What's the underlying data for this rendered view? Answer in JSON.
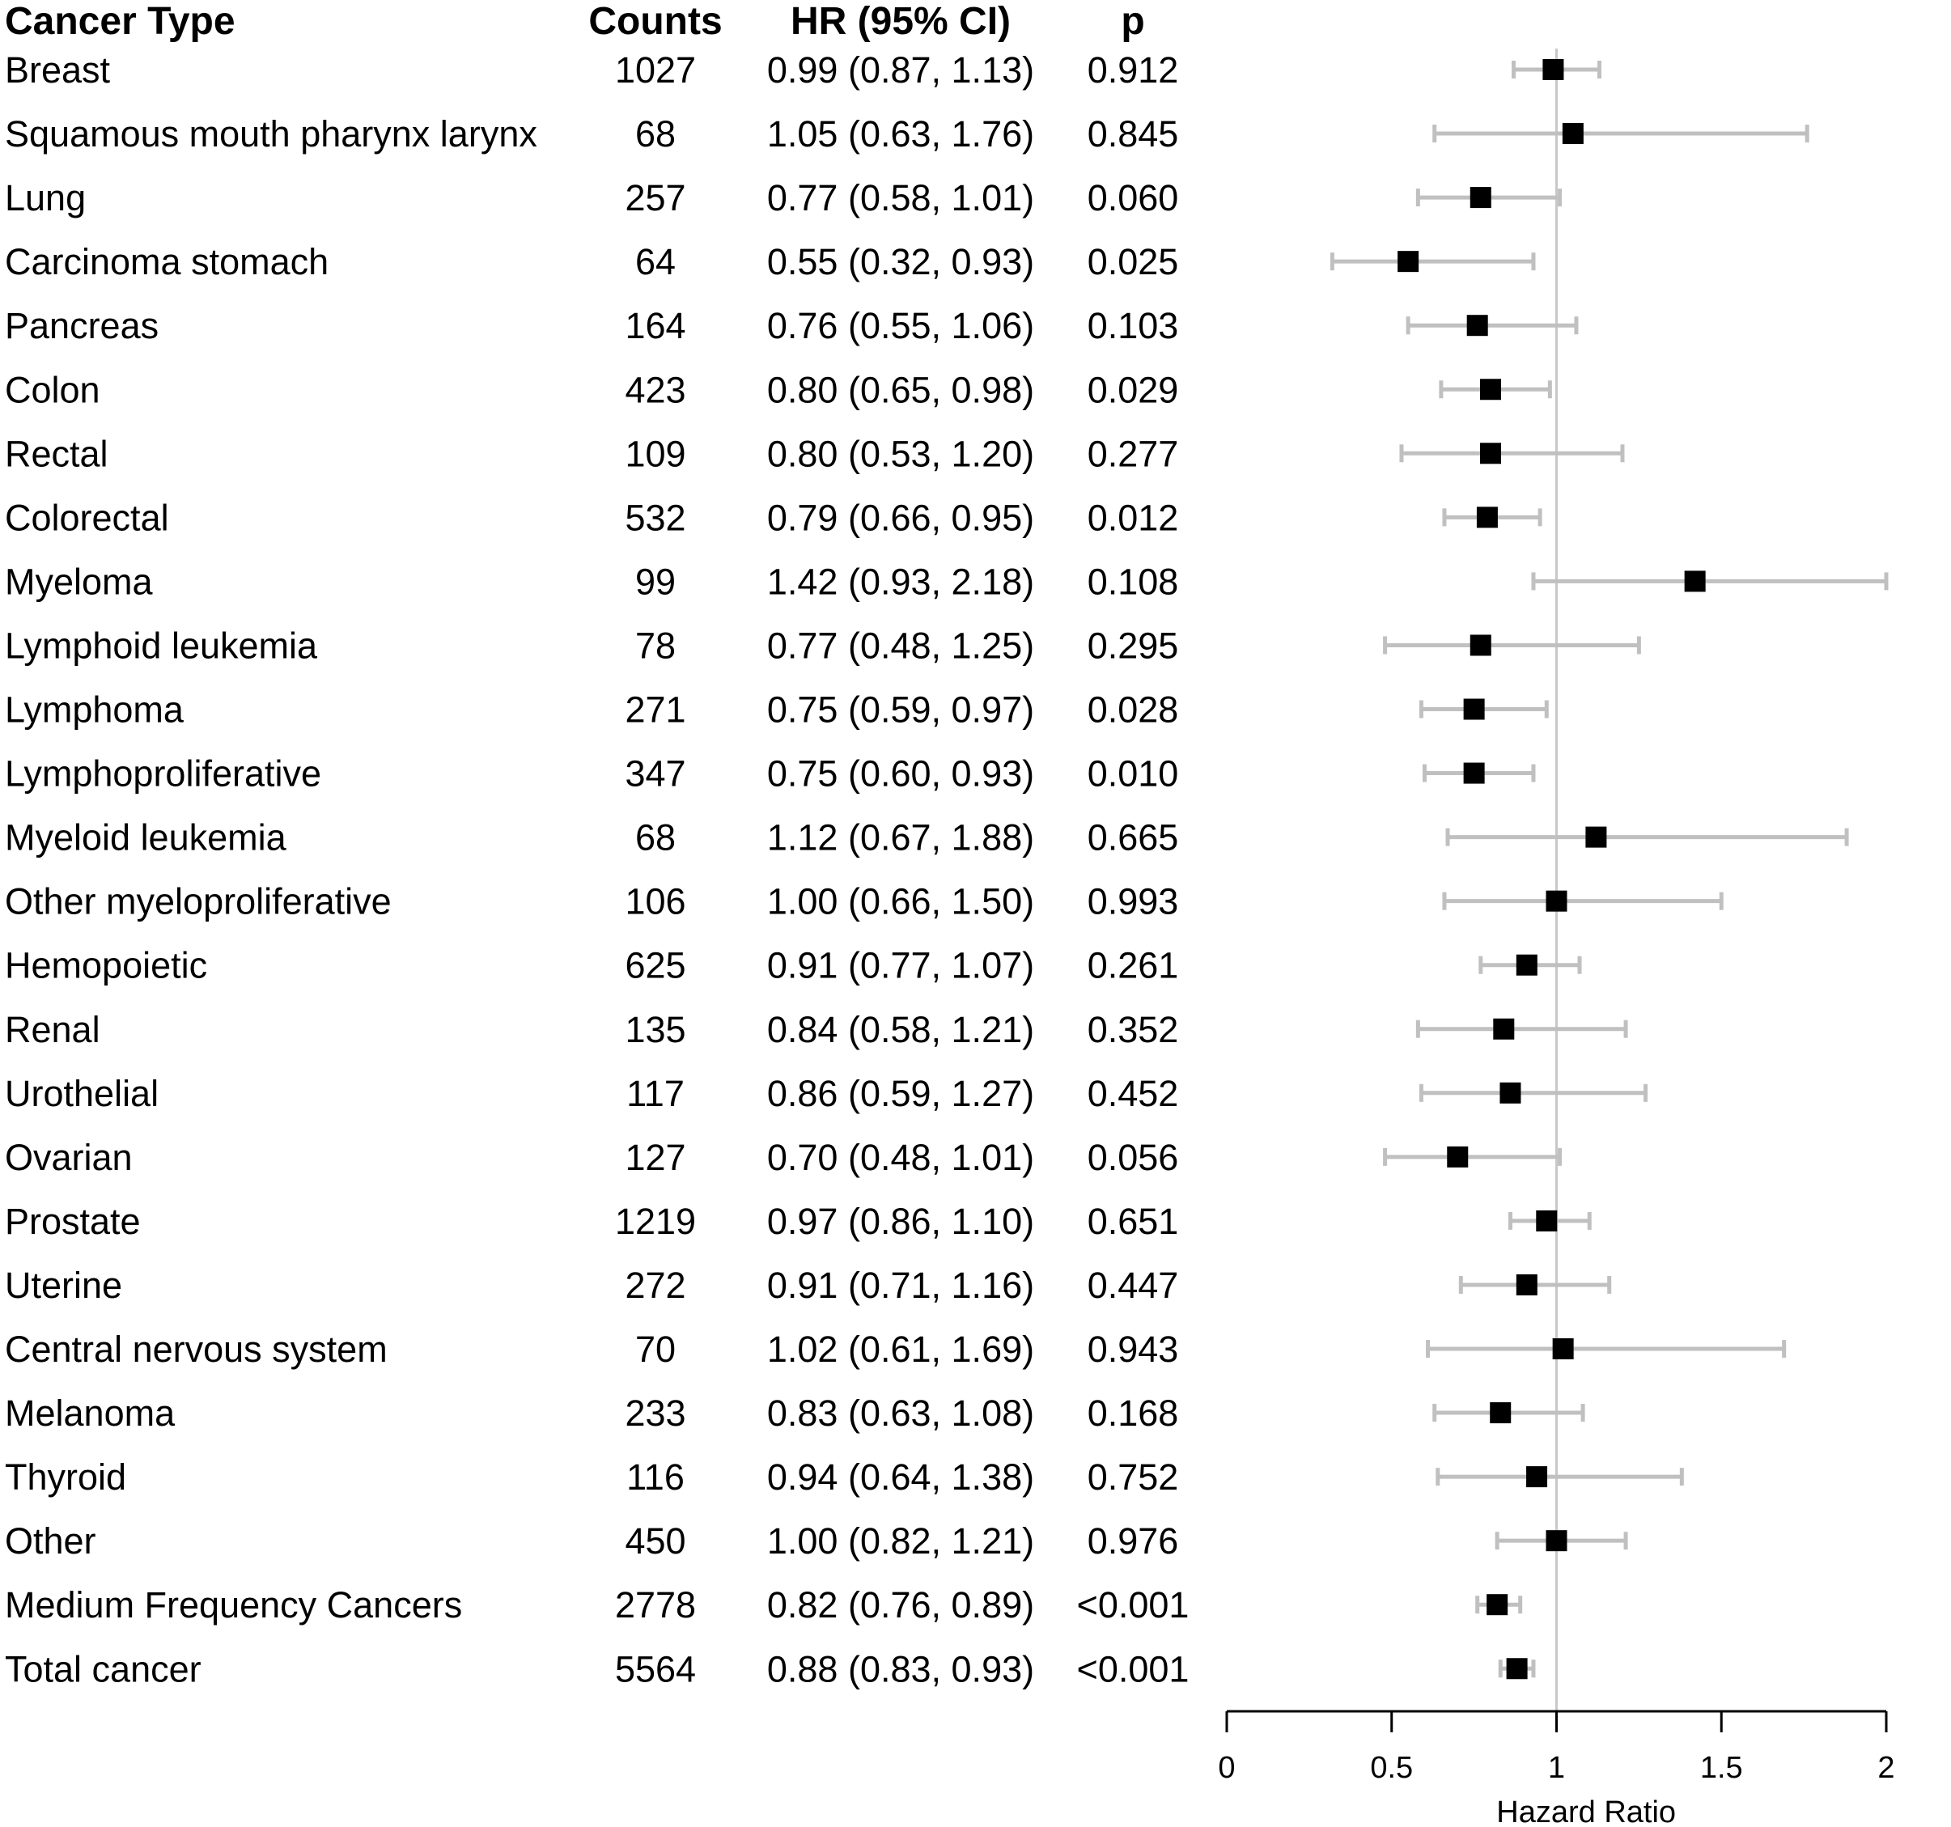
{
  "headers": {
    "cancer_type": "Cancer Type",
    "counts": "Counts",
    "hr_ci": "HR (95% CI)",
    "p": "p"
  },
  "rows": [
    {
      "name": "Breast",
      "counts": "1027",
      "hr_text": "0.99 (0.87, 1.13)",
      "p": "0.912"
    },
    {
      "name": "Squamous mouth pharynx larynx",
      "counts": "68",
      "hr_text": "1.05 (0.63, 1.76)",
      "p": "0.845"
    },
    {
      "name": "Lung",
      "counts": "257",
      "hr_text": "0.77 (0.58, 1.01)",
      "p": "0.060"
    },
    {
      "name": "Carcinoma stomach",
      "counts": "64",
      "hr_text": "0.55 (0.32, 0.93)",
      "p": "0.025"
    },
    {
      "name": "Pancreas",
      "counts": "164",
      "hr_text": "0.76 (0.55, 1.06)",
      "p": "0.103"
    },
    {
      "name": "Colon",
      "counts": "423",
      "hr_text": "0.80 (0.65, 0.98)",
      "p": "0.029"
    },
    {
      "name": "Rectal",
      "counts": "109",
      "hr_text": "0.80 (0.53, 1.20)",
      "p": "0.277"
    },
    {
      "name": "Colorectal",
      "counts": "532",
      "hr_text": "0.79 (0.66, 0.95)",
      "p": "0.012"
    },
    {
      "name": "Myeloma",
      "counts": "99",
      "hr_text": "1.42 (0.93, 2.18)",
      "p": "0.108"
    },
    {
      "name": "Lymphoid leukemia",
      "counts": "78",
      "hr_text": "0.77 (0.48, 1.25)",
      "p": "0.295"
    },
    {
      "name": "Lymphoma",
      "counts": "271",
      "hr_text": "0.75 (0.59, 0.97)",
      "p": "0.028"
    },
    {
      "name": "Lymphoproliferative",
      "counts": "347",
      "hr_text": "0.75 (0.60, 0.93)",
      "p": "0.010"
    },
    {
      "name": "Myeloid leukemia",
      "counts": "68",
      "hr_text": "1.12 (0.67, 1.88)",
      "p": "0.665"
    },
    {
      "name": "Other myeloproliferative",
      "counts": "106",
      "hr_text": "1.00 (0.66, 1.50)",
      "p": "0.993"
    },
    {
      "name": "Hemopoietic",
      "counts": "625",
      "hr_text": "0.91 (0.77, 1.07)",
      "p": "0.261"
    },
    {
      "name": "Renal",
      "counts": "135",
      "hr_text": "0.84 (0.58, 1.21)",
      "p": "0.352"
    },
    {
      "name": "Urothelial",
      "counts": "117",
      "hr_text": "0.86 (0.59, 1.27)",
      "p": "0.452"
    },
    {
      "name": "Ovarian",
      "counts": "127",
      "hr_text": "0.70 (0.48, 1.01)",
      "p": "0.056"
    },
    {
      "name": "Prostate",
      "counts": "1219",
      "hr_text": "0.97 (0.86, 1.10)",
      "p": "0.651"
    },
    {
      "name": "Uterine",
      "counts": "272",
      "hr_text": "0.91 (0.71, 1.16)",
      "p": "0.447"
    },
    {
      "name": "Central nervous system",
      "counts": "70",
      "hr_text": "1.02 (0.61, 1.69)",
      "p": "0.943"
    },
    {
      "name": "Melanoma",
      "counts": "233",
      "hr_text": "0.83 (0.63, 1.08)",
      "p": "0.168"
    },
    {
      "name": "Thyroid",
      "counts": "116",
      "hr_text": "0.94 (0.64, 1.38)",
      "p": "0.752"
    },
    {
      "name": "Other",
      "counts": "450",
      "hr_text": "1.00 (0.82, 1.21)",
      "p": "0.976"
    },
    {
      "name": "Medium Frequency Cancers",
      "counts": "2778",
      "hr_text": "0.82 (0.76, 0.89)",
      "p": "<0.001"
    },
    {
      "name": "Total cancer",
      "counts": "5564",
      "hr_text": "0.88 (0.83, 0.93)",
      "p": "<0.001"
    }
  ],
  "chart_data": {
    "type": "forest",
    "xlabel": "Hazard Ratio",
    "xlim": [
      0,
      2
    ],
    "xticks": [
      0,
      0.5,
      1,
      1.5,
      2
    ],
    "xtick_labels": [
      "0",
      "0.5",
      "1",
      "1.5",
      "2"
    ],
    "reference_line": 1,
    "colors": {
      "marker": "#000000",
      "ci_line": "#c0c0c0",
      "reference_line": "#c8c8c8",
      "axis": "#000000"
    },
    "series": [
      {
        "label": "Breast",
        "hr": 0.99,
        "lower": 0.87,
        "upper": 1.13
      },
      {
        "label": "Squamous mouth pharynx larynx",
        "hr": 1.05,
        "lower": 0.63,
        "upper": 1.76
      },
      {
        "label": "Lung",
        "hr": 0.77,
        "lower": 0.58,
        "upper": 1.01
      },
      {
        "label": "Carcinoma stomach",
        "hr": 0.55,
        "lower": 0.32,
        "upper": 0.93
      },
      {
        "label": "Pancreas",
        "hr": 0.76,
        "lower": 0.55,
        "upper": 1.06
      },
      {
        "label": "Colon",
        "hr": 0.8,
        "lower": 0.65,
        "upper": 0.98
      },
      {
        "label": "Rectal",
        "hr": 0.8,
        "lower": 0.53,
        "upper": 1.2
      },
      {
        "label": "Colorectal",
        "hr": 0.79,
        "lower": 0.66,
        "upper": 0.95
      },
      {
        "label": "Myeloma",
        "hr": 1.42,
        "lower": 0.93,
        "upper": 2.18
      },
      {
        "label": "Lymphoid leukemia",
        "hr": 0.77,
        "lower": 0.48,
        "upper": 1.25
      },
      {
        "label": "Lymphoma",
        "hr": 0.75,
        "lower": 0.59,
        "upper": 0.97
      },
      {
        "label": "Lymphoproliferative",
        "hr": 0.75,
        "lower": 0.6,
        "upper": 0.93
      },
      {
        "label": "Myeloid leukemia",
        "hr": 1.12,
        "lower": 0.67,
        "upper": 1.88
      },
      {
        "label": "Other myeloproliferative",
        "hr": 1.0,
        "lower": 0.66,
        "upper": 1.5
      },
      {
        "label": "Hemopoietic",
        "hr": 0.91,
        "lower": 0.77,
        "upper": 1.07
      },
      {
        "label": "Renal",
        "hr": 0.84,
        "lower": 0.58,
        "upper": 1.21
      },
      {
        "label": "Urothelial",
        "hr": 0.86,
        "lower": 0.59,
        "upper": 1.27
      },
      {
        "label": "Ovarian",
        "hr": 0.7,
        "lower": 0.48,
        "upper": 1.01
      },
      {
        "label": "Prostate",
        "hr": 0.97,
        "lower": 0.86,
        "upper": 1.1
      },
      {
        "label": "Uterine",
        "hr": 0.91,
        "lower": 0.71,
        "upper": 1.16
      },
      {
        "label": "Central nervous system",
        "hr": 1.02,
        "lower": 0.61,
        "upper": 1.69
      },
      {
        "label": "Melanoma",
        "hr": 0.83,
        "lower": 0.63,
        "upper": 1.08
      },
      {
        "label": "Thyroid",
        "hr": 0.94,
        "lower": 0.64,
        "upper": 1.38
      },
      {
        "label": "Other",
        "hr": 1.0,
        "lower": 0.82,
        "upper": 1.21
      },
      {
        "label": "Medium Frequency Cancers",
        "hr": 0.82,
        "lower": 0.76,
        "upper": 0.89
      },
      {
        "label": "Total cancer",
        "hr": 0.88,
        "lower": 0.83,
        "upper": 0.93
      }
    ]
  }
}
